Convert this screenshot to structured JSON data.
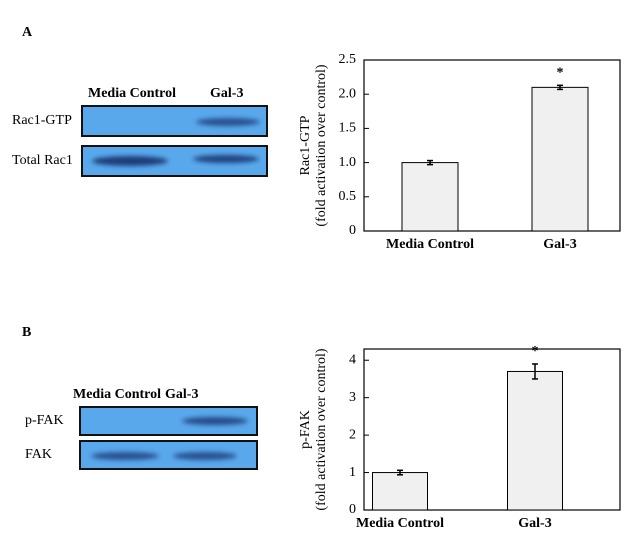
{
  "panel_labels": [
    "A",
    "B"
  ],
  "blots": [
    {
      "columns": [
        "Media Control",
        "Gal-3"
      ],
      "rows": [
        "Rac1-GTP",
        "Total Rac1"
      ]
    },
    {
      "columns": [
        "Media Control",
        "Gal-3"
      ],
      "rows": [
        "p-FAK",
        "FAK"
      ]
    }
  ],
  "chart_data": [
    {
      "type": "bar",
      "ylabel": [
        "Rac1-GTP",
        "(fold activation over control)"
      ],
      "categories": [
        "Media Control",
        "Gal-3"
      ],
      "values": [
        1.0,
        2.1
      ],
      "errors": [
        0.03,
        0.03
      ],
      "color": "#f0f0f0",
      "ylim": [
        0,
        2.5
      ],
      "yticks": [
        0,
        0.5,
        {
          "value": 1,
          "label": "1.0"
        },
        1.5,
        {
          "value": 2,
          "label": "2.0"
        },
        2.5
      ],
      "annotations": [
        {
          "text": "*",
          "x": "Gal-3"
        }
      ]
    },
    {
      "type": "bar",
      "ylabel": [
        "p-FAK",
        "(fold activation over control)"
      ],
      "categories": [
        "Media Control",
        "Gal-3"
      ],
      "values": [
        1.0,
        3.7
      ],
      "errors": [
        0.06,
        0.2
      ],
      "color": "#f0f0f0",
      "ylim": [
        0,
        4.3
      ],
      "yticks": [
        0,
        1,
        2,
        3,
        4
      ],
      "annotations": [
        {
          "text": "*",
          "x": "Gal-3"
        }
      ]
    }
  ]
}
